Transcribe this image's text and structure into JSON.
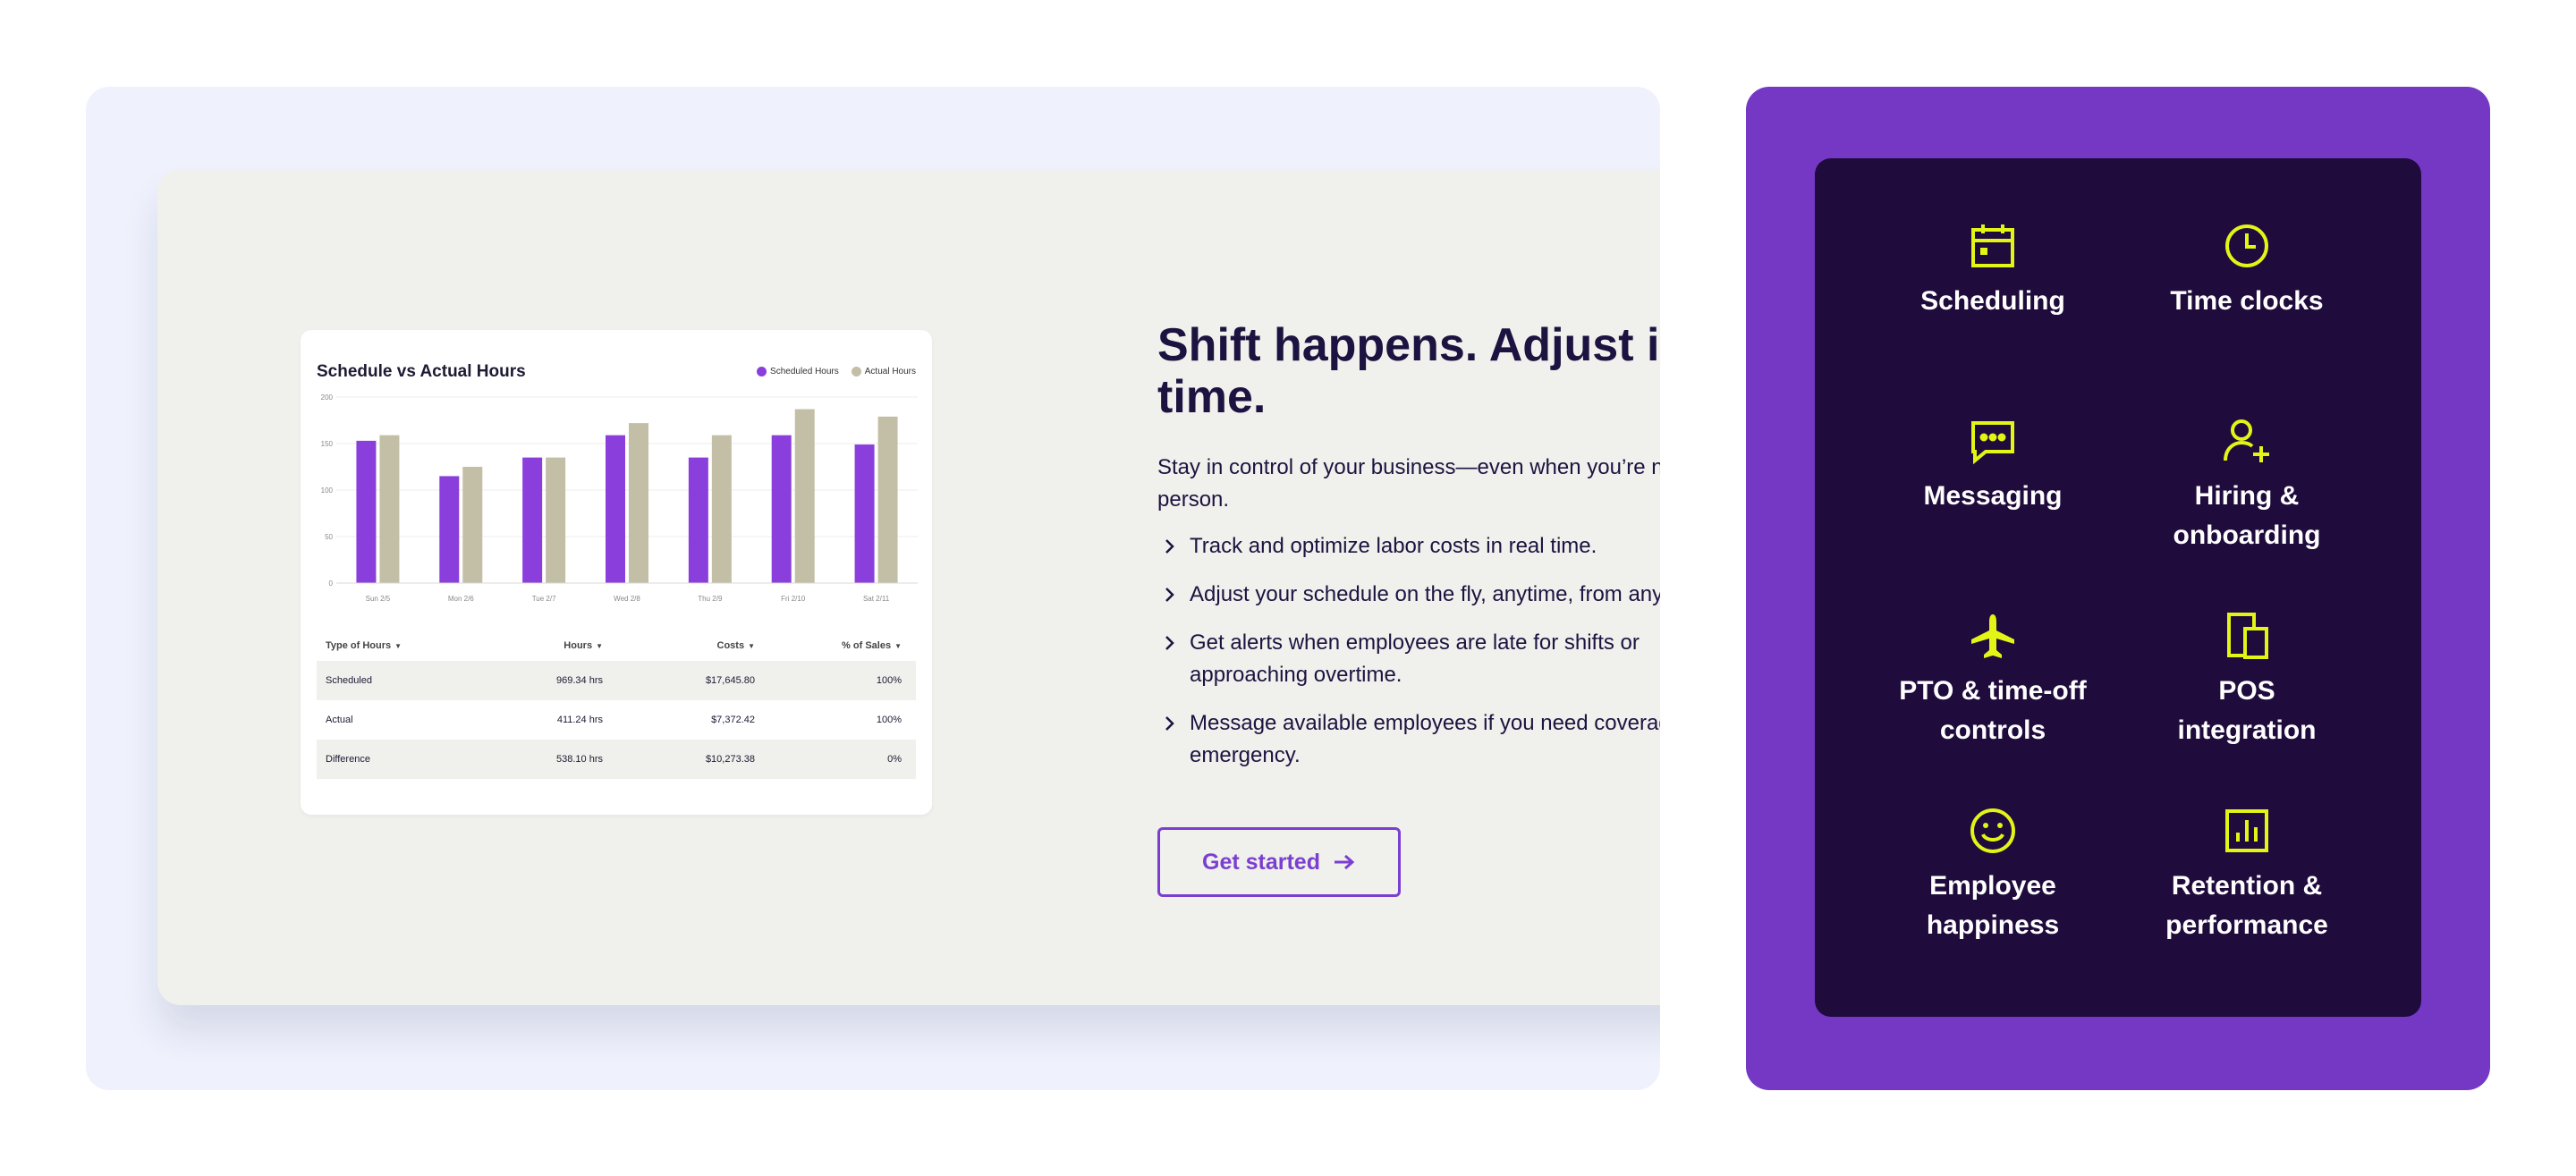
{
  "chart_widget": {
    "title": "Schedule vs Actual Hours",
    "legend": [
      "Scheduled Hours",
      "Actual Hours"
    ],
    "colors": {
      "scheduled": "#8a3fdd",
      "actual": "#c3bfa6"
    }
  },
  "chart_data": {
    "type": "bar",
    "title": "Schedule vs Actual Hours",
    "categories": [
      "Sun 2/5",
      "Mon 2/6",
      "Tue 2/7",
      "Wed 2/8",
      "Thu 2/9",
      "Fri 2/10",
      "Sat 2/11"
    ],
    "series": [
      {
        "name": "Scheduled Hours",
        "values": [
          153,
          115,
          135,
          159,
          135,
          159,
          149
        ]
      },
      {
        "name": "Actual Hours",
        "values": [
          159,
          125,
          135,
          172,
          159,
          187,
          179
        ]
      }
    ],
    "yticks": [
      0,
      50,
      100,
      150,
      200
    ],
    "ylim": [
      0,
      200
    ],
    "grid": true,
    "legend_position": "top-right"
  },
  "table": {
    "headers": [
      "Type of Hours",
      "Hours",
      "Costs",
      "% of Sales"
    ],
    "rows": [
      [
        "Scheduled",
        "969.34 hrs",
        "$17,645.80",
        "100%"
      ],
      [
        "Actual",
        "411.24 hrs",
        "$7,372.42",
        "100%"
      ],
      [
        "Difference",
        "538.10 hrs",
        "$10,273.38",
        "0%"
      ]
    ]
  },
  "content": {
    "heading_lines": [
      "Shift happens. Adjust in real",
      "time."
    ],
    "intro_lines": [
      "Stay in control of your business—even when you’re not the",
      "person."
    ],
    "bullets": [
      [
        "Track and optimize labor costs in real time."
      ],
      [
        "Adjust your schedule on the fly, anytime, from anywhe"
      ],
      [
        "Get alerts when employees are late for shifts or",
        "approaching overtime."
      ],
      [
        "Message available employees if you need coverage in",
        "emergency."
      ]
    ],
    "cta_label": "Get started"
  },
  "features": [
    {
      "icon": "calendar-icon",
      "lines": [
        "Scheduling"
      ]
    },
    {
      "icon": "clock-icon",
      "lines": [
        "Time clocks"
      ]
    },
    {
      "icon": "chat-icon",
      "lines": [
        "Messaging"
      ]
    },
    {
      "icon": "add-user-icon",
      "lines": [
        "Hiring &",
        "onboarding"
      ]
    },
    {
      "icon": "airplane-icon",
      "lines": [
        "PTO & time-off",
        "controls"
      ]
    },
    {
      "icon": "devices-icon",
      "lines": [
        "POS",
        "integration"
      ]
    },
    {
      "icon": "smiley-icon",
      "lines": [
        "Employee",
        "happiness"
      ]
    },
    {
      "icon": "bar-chart-icon",
      "lines": [
        "Retention &",
        "performance"
      ]
    }
  ],
  "colors": {
    "accent": "#7438c5",
    "icon": "#e2f516",
    "heading": "#1d1340"
  }
}
